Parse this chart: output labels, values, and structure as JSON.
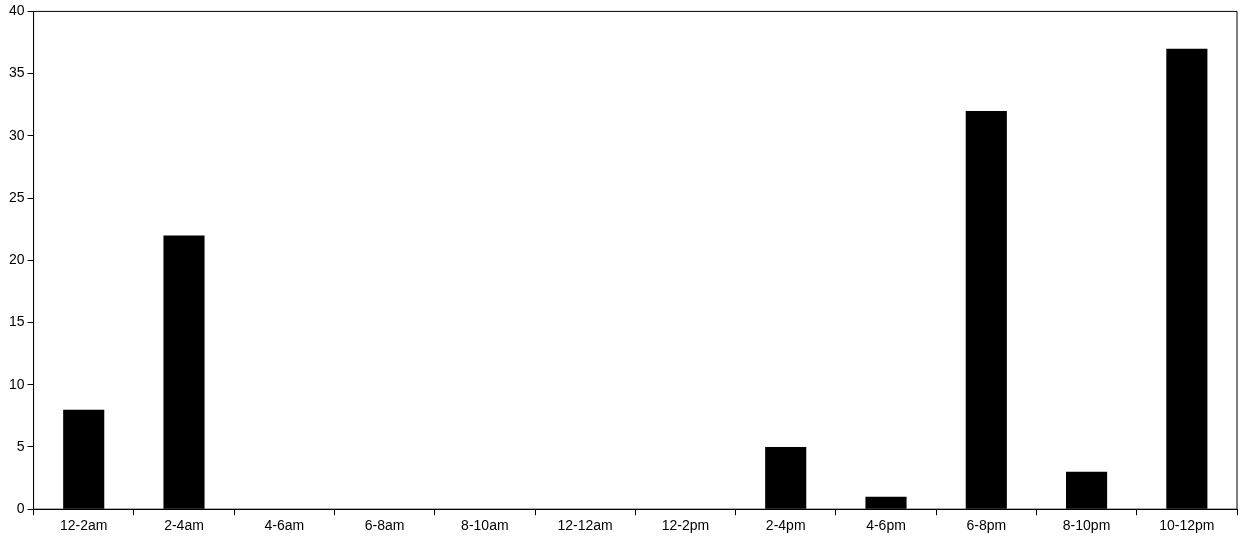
{
  "chart_data": {
    "type": "bar",
    "categories": [
      "12-2am",
      "2-4am",
      "4-6am",
      "6-8am",
      "8-10am",
      "12-12am",
      "12-2pm",
      "2-4pm",
      "4-6pm",
      "6-8pm",
      "8-10pm",
      "10-12pm"
    ],
    "values": [
      8,
      22,
      0,
      0,
      0,
      0,
      0,
      5,
      1,
      32,
      3,
      37
    ],
    "color": "#000000",
    "ylim": [
      0,
      40
    ],
    "yticks": [
      0,
      5,
      10,
      15,
      20,
      25,
      30,
      35,
      40
    ],
    "grid": false,
    "legend": false
  }
}
